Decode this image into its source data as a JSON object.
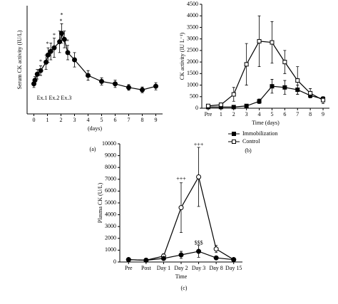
{
  "chart_data": [
    {
      "type": "line",
      "panel_label": "(a)",
      "ylabel": "Serum CK activity (IU/L)",
      "xlabel": "(days)",
      "x": [
        0,
        0.08,
        0.25,
        0.5,
        0.9,
        1.05,
        1.25,
        1.5,
        1.9,
        2.05,
        2.25,
        2.5,
        3,
        4,
        5,
        6,
        7,
        8,
        9
      ],
      "xlim": [
        -0.5,
        9.5
      ],
      "xticks": [
        0,
        1,
        2,
        3,
        4,
        5,
        6,
        7,
        8,
        9
      ],
      "ylim": [
        0,
        450
      ],
      "series": [
        {
          "color": "#000000",
          "marker": "circle",
          "filled": true,
          "values": [
            125,
            140,
            165,
            180,
            215,
            245,
            260,
            275,
            300,
            335,
            310,
            255,
            225,
            160,
            135,
            125,
            110,
            100,
            115
          ],
          "errors": [
            15,
            15,
            20,
            20,
            30,
            30,
            35,
            40,
            45,
            40,
            35,
            30,
            30,
            20,
            15,
            15,
            12,
            12,
            15
          ]
        }
      ],
      "annotations": [
        {
          "text": "*",
          "x": 0.5,
          "y": 215
        },
        {
          "text": "*",
          "x": 1,
          "y": 290
        },
        {
          "text": "*",
          "x": 1.5,
          "y": 325
        },
        {
          "text": "*",
          "x": 2,
          "y": 385
        },
        {
          "text": "*",
          "x": 2.05,
          "y": 410
        },
        {
          "text": "*",
          "x": 2.5,
          "y": 300
        },
        {
          "text": "Ex.1 Ex.2 Ex.3",
          "x": 1.5,
          "y": 65
        }
      ]
    },
    {
      "type": "line",
      "panel_label": "(b)",
      "ylabel": "CK activity (IU L⁻¹)",
      "xlabel": "Time (days)",
      "categories": [
        "Pre",
        "1",
        "2",
        "3",
        "4",
        "5",
        "6",
        "7",
        "8",
        "9"
      ],
      "ylim": [
        0,
        4500
      ],
      "yticks": [
        0,
        500,
        1000,
        1500,
        2000,
        2500,
        3000,
        3500,
        4000,
        4500
      ],
      "legend": "below",
      "series": [
        {
          "name": "Immobilization",
          "color": "#000000",
          "marker": "square",
          "filled": true,
          "values": [
            50,
            50,
            50,
            100,
            300,
            950,
            900,
            800,
            550,
            400
          ],
          "errors": [
            20,
            20,
            20,
            50,
            100,
            300,
            300,
            200,
            100,
            80
          ]
        },
        {
          "name": "Control",
          "color": "#000000",
          "marker": "square",
          "filled": false,
          "values": [
            100,
            150,
            600,
            1900,
            2900,
            2850,
            2000,
            1200,
            650,
            350
          ],
          "errors": [
            50,
            80,
            300,
            900,
            1100,
            900,
            500,
            600,
            200,
            150
          ]
        }
      ]
    },
    {
      "type": "line",
      "panel_label": "(c)",
      "ylabel": "Plasma CK (U/L)",
      "xlabel": "Time",
      "categories": [
        "Pre",
        "Post",
        "Day 1",
        "Day 2",
        "Day 3",
        "Day 8",
        "Day 15"
      ],
      "ylim": [
        0,
        10000
      ],
      "yticks": [
        0,
        1000,
        2000,
        3000,
        4000,
        5000,
        6000,
        7000,
        8000,
        9000,
        10000
      ],
      "series": [
        {
          "color": "#000000",
          "marker": "circle",
          "filled": false,
          "values": [
            200,
            150,
            500,
            4600,
            7200,
            1100,
            200
          ],
          "errors": [
            50,
            50,
            200,
            2100,
            2500,
            300,
            50
          ]
        },
        {
          "color": "#000000",
          "marker": "circle",
          "filled": true,
          "values": [
            200,
            150,
            300,
            600,
            900,
            350,
            200
          ],
          "errors": [
            50,
            50,
            100,
            300,
            500,
            100,
            50
          ]
        }
      ],
      "annotations": [
        {
          "category": "Day 2",
          "text": "+++",
          "y": 7000
        },
        {
          "category": "Day 3",
          "text": "+++",
          "y": 9900
        },
        {
          "category": "Day 3",
          "text": "$$$",
          "y": 1600
        }
      ]
    }
  ]
}
